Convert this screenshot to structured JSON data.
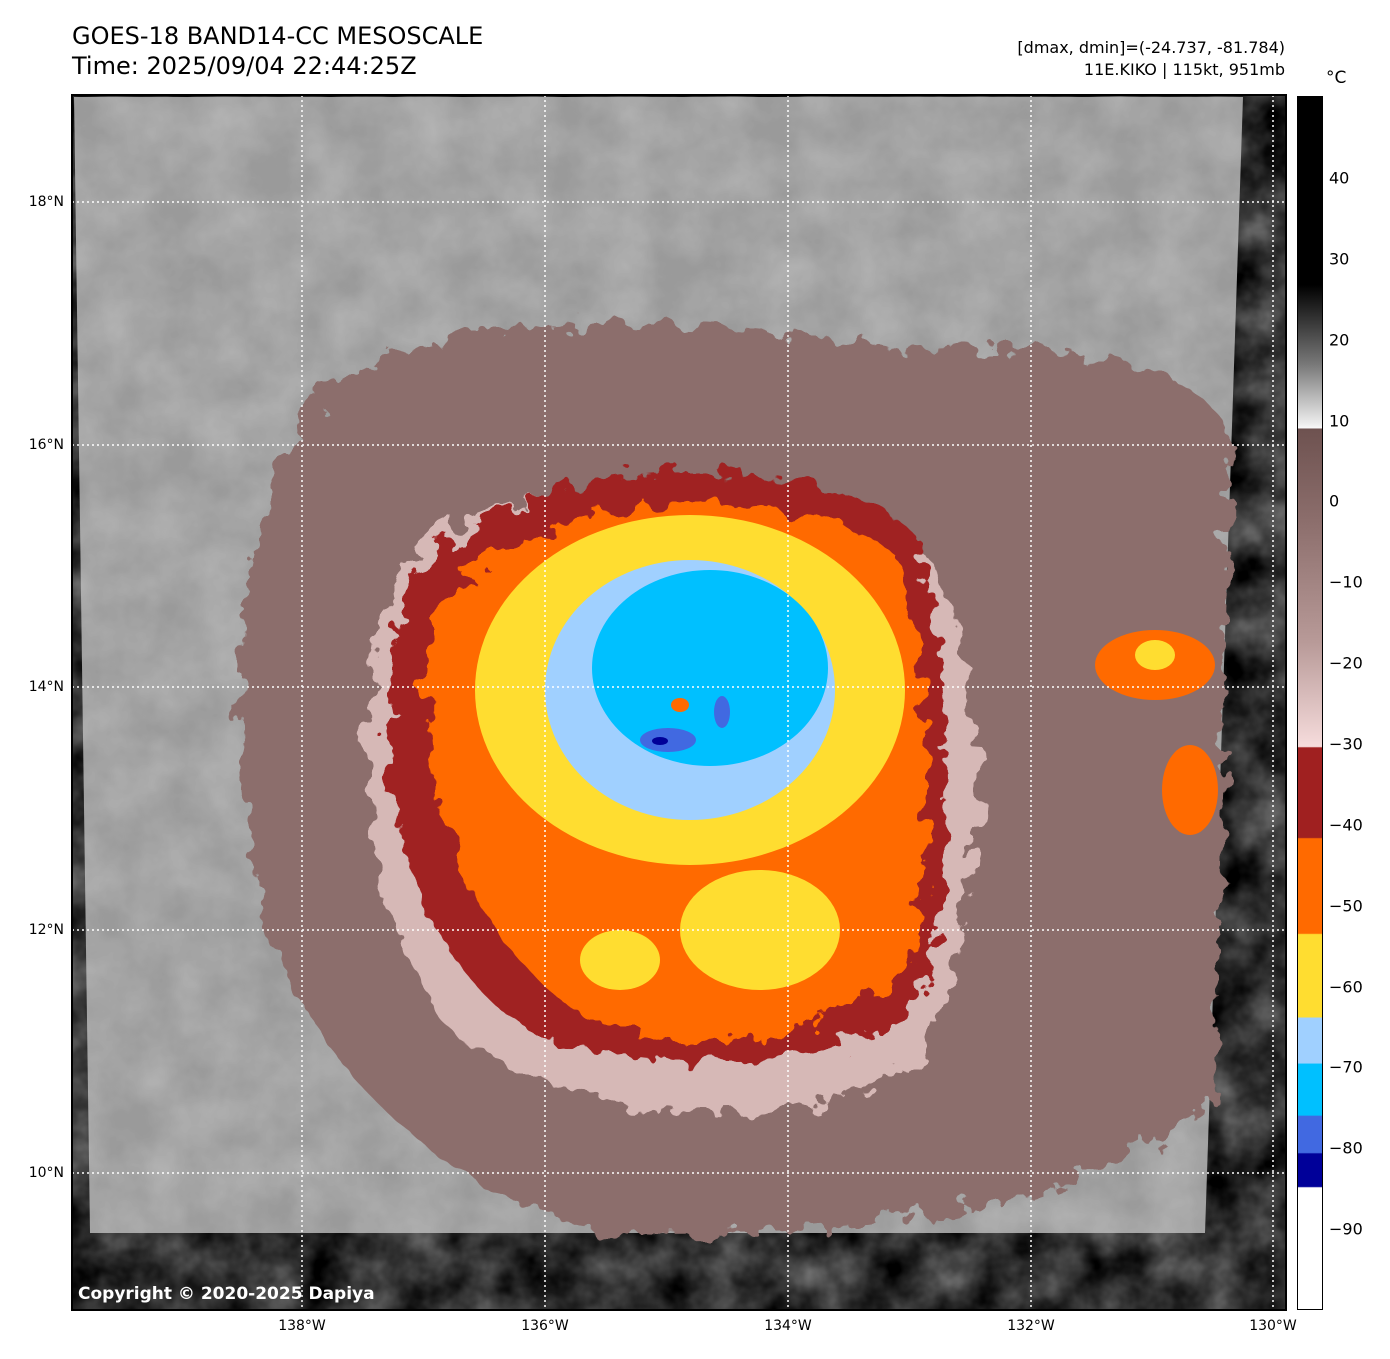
{
  "header": {
    "title": "GOES-18 BAND14-CC MESOSCALE",
    "time": "Time: 2025/09/04 22:44:25Z",
    "range": "[dmax, dmin]=(-24.737, -81.784)",
    "storm": "11E.KIKO | 115kt, 951mb"
  },
  "colorbar": {
    "unit": "°C",
    "labels": [
      "40",
      "30",
      "20",
      "10",
      "0",
      "−10",
      "−20",
      "−30",
      "−40",
      "−50",
      "−60",
      "−70",
      "−80",
      "−90"
    ],
    "colors": {
      "red": "#a02020",
      "orange": "#ff6a00",
      "yellow": "#ffdd30",
      "lightblue": "#a0d0ff",
      "cyan": "#00c0ff",
      "blue": "#4169e1",
      "navy": "#000099"
    }
  },
  "axes": {
    "lat": [
      "18°N",
      "16°N",
      "14°N",
      "12°N",
      "10°N"
    ],
    "lon": [
      "138°W",
      "136°W",
      "134°W",
      "132°W",
      "130°W"
    ]
  },
  "copyright": "Copyright © 2020-2025 Dapiya"
}
